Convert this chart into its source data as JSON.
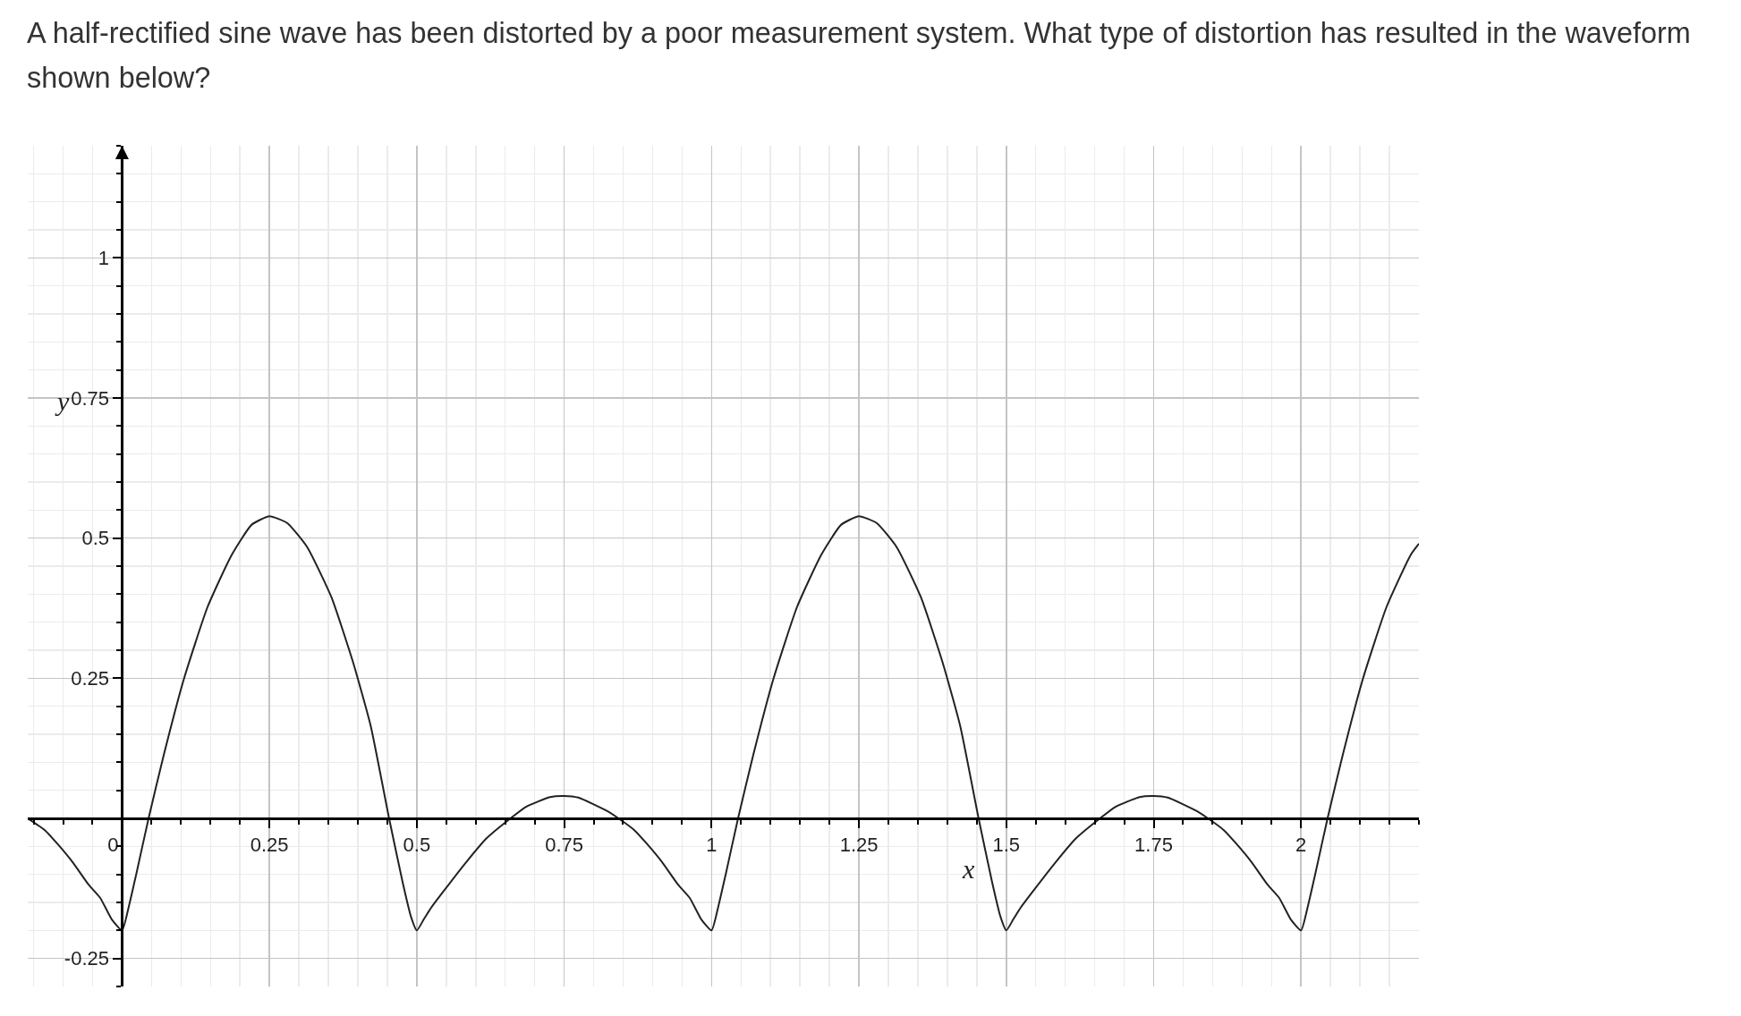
{
  "chart_data": {
    "type": "line",
    "title": "A half-rectified sine wave has been distorted by a poor measurement system. What type of distortion has resulted in the waveform shown below?",
    "xlabel": "x",
    "ylabel": "y",
    "x": [
      -0.16,
      -0.131,
      -0.11,
      -0.084,
      -0.057,
      -0.037,
      -0.017,
      0,
      0.012,
      0.024,
      0.045,
      0.071,
      0.105,
      0.145,
      0.186,
      0.22,
      0.25,
      0.28,
      0.314,
      0.355,
      0.392,
      0.422,
      0.453,
      0.476,
      0.49,
      0.5,
      0.512,
      0.524,
      0.544,
      0.584,
      0.618,
      0.659,
      0.686,
      0.726,
      0.75,
      0.774,
      0.821,
      0.842,
      0.869,
      0.89,
      0.916,
      0.943,
      0.963,
      0.983,
      1,
      1.012,
      1.024,
      1.045,
      1.071,
      1.105,
      1.145,
      1.186,
      1.22,
      1.25,
      1.28,
      1.314,
      1.355,
      1.392,
      1.422,
      1.453,
      1.476,
      1.49,
      1.5,
      1.512,
      1.524,
      1.544,
      1.584,
      1.618,
      1.659,
      1.686,
      1.726,
      1.75,
      1.774,
      1.821,
      1.842,
      1.869,
      1.89,
      1.916,
      1.943,
      1.963,
      1.983,
      2,
      2.012,
      2.024,
      2.045,
      2.071,
      2.105,
      2.145,
      2.186,
      2.2
    ],
    "values": [
      0,
      -0.021,
      -0.045,
      -0.078,
      -0.118,
      -0.142,
      -0.181,
      -0.2,
      -0.155,
      -0.1,
      0,
      0.114,
      0.249,
      0.377,
      0.47,
      0.524,
      0.539,
      0.527,
      0.484,
      0.395,
      0.278,
      0.164,
      0,
      -0.114,
      -0.175,
      -0.2,
      -0.18,
      -0.16,
      -0.132,
      -0.078,
      -0.036,
      0,
      0.021,
      0.038,
      0.04,
      0.037,
      0.014,
      0,
      -0.021,
      -0.045,
      -0.078,
      -0.118,
      -0.142,
      -0.181,
      -0.2,
      -0.155,
      -0.1,
      0,
      0.114,
      0.249,
      0.377,
      0.47,
      0.524,
      0.539,
      0.527,
      0.484,
      0.395,
      0.278,
      0.164,
      0,
      -0.114,
      -0.175,
      -0.2,
      -0.18,
      -0.16,
      -0.132,
      -0.078,
      -0.036,
      0,
      0.021,
      0.038,
      0.04,
      0.037,
      0.014,
      0,
      -0.021,
      -0.045,
      -0.078,
      -0.118,
      -0.142,
      -0.181,
      -0.2,
      -0.155,
      -0.1,
      0,
      0.114,
      0.249,
      0.377,
      0.47,
      0.49
    ],
    "color": "#222222",
    "line_style": "solid",
    "xlim": [
      -0.16,
      2.2
    ],
    "ylim": [
      -0.3,
      1.2
    ],
    "xticks": [
      0,
      0.25,
      0.5,
      0.75,
      1,
      1.25,
      1.5,
      1.75,
      2
    ],
    "yticks": [
      -0.25,
      0.25,
      0.5,
      0.75,
      1
    ],
    "grid": true
  }
}
